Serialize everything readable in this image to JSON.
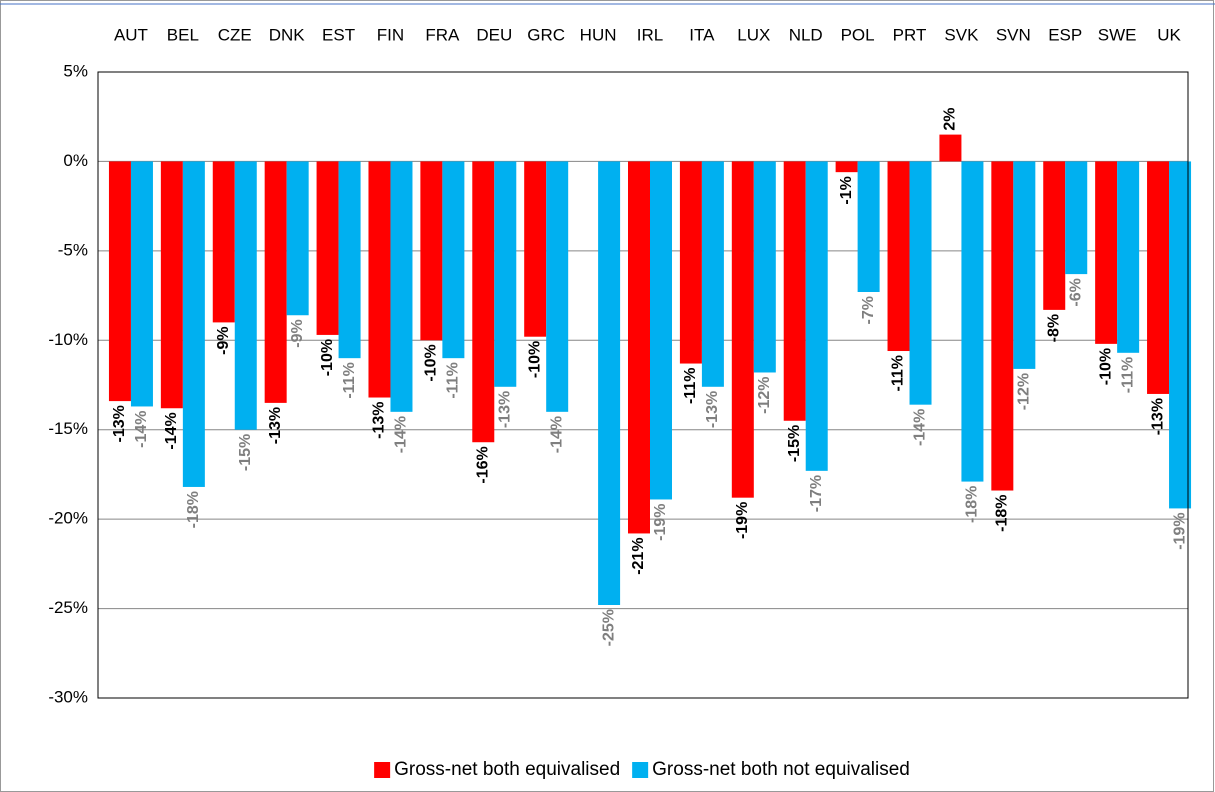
{
  "chart_data": {
    "type": "bar",
    "categories": [
      "AUT",
      "BEL",
      "CZE",
      "DNK",
      "EST",
      "FIN",
      "FRA",
      "DEU",
      "GRC",
      "HUN",
      "IRL",
      "ITA",
      "LUX",
      "NLD",
      "POL",
      "PRT",
      "SVK",
      "SVN",
      "ESP",
      "SWE",
      "UK"
    ],
    "series": [
      {
        "name": "Gross-net both equivalised",
        "color": "#ff0000",
        "label_color": "#000000",
        "values": [
          -13.4,
          -13.8,
          -9.0,
          -13.5,
          -9.7,
          -13.2,
          -10.0,
          -15.7,
          -9.8,
          null,
          -20.8,
          -11.3,
          -18.8,
          -14.5,
          -0.6,
          -10.6,
          1.5,
          -18.4,
          -8.3,
          -10.2,
          -13.0
        ],
        "value_labels": [
          "-13%",
          "-14%",
          "-9%",
          "-13%",
          "-10%",
          "-13%",
          "-10%",
          "-16%",
          "-10%",
          null,
          "-21%",
          "-11%",
          "-19%",
          "-15%",
          "-1%",
          "-11%",
          "2%",
          "-18%",
          "-8%",
          "-10%",
          "-13%"
        ]
      },
      {
        "name": "Gross-net both not equivalised",
        "color": "#00b0f0",
        "label_color": "#7f7f7f",
        "values": [
          -13.7,
          -18.2,
          -15.0,
          -8.6,
          -11.0,
          -14.0,
          -11.0,
          -12.6,
          -14.0,
          -24.8,
          -18.9,
          -12.6,
          -11.8,
          -17.3,
          -7.3,
          -13.6,
          -17.9,
          -11.6,
          -6.3,
          -10.7,
          -19.4
        ],
        "value_labels": [
          "-14%",
          "-18%",
          "-15%",
          "-9%",
          "-11%",
          "-14%",
          "-11%",
          "-13%",
          "-14%",
          "-25%",
          "-19%",
          "-13%",
          "-12%",
          "-17%",
          "-7%",
          "-14%",
          "-18%",
          "-12%",
          "-6%",
          "-11%",
          "-19%"
        ]
      }
    ],
    "ylim": [
      -30,
      5
    ],
    "yticks": [
      {
        "value": 5,
        "label": "5%"
      },
      {
        "value": 0,
        "label": "0%"
      },
      {
        "value": -5,
        "label": "-5%"
      },
      {
        "value": -10,
        "label": "-10%"
      },
      {
        "value": -15,
        "label": "-15%"
      },
      {
        "value": -20,
        "label": "-20%"
      },
      {
        "value": -25,
        "label": "-25%"
      },
      {
        "value": -30,
        "label": "-30%"
      }
    ],
    "grid": true,
    "legend": "bottom"
  }
}
